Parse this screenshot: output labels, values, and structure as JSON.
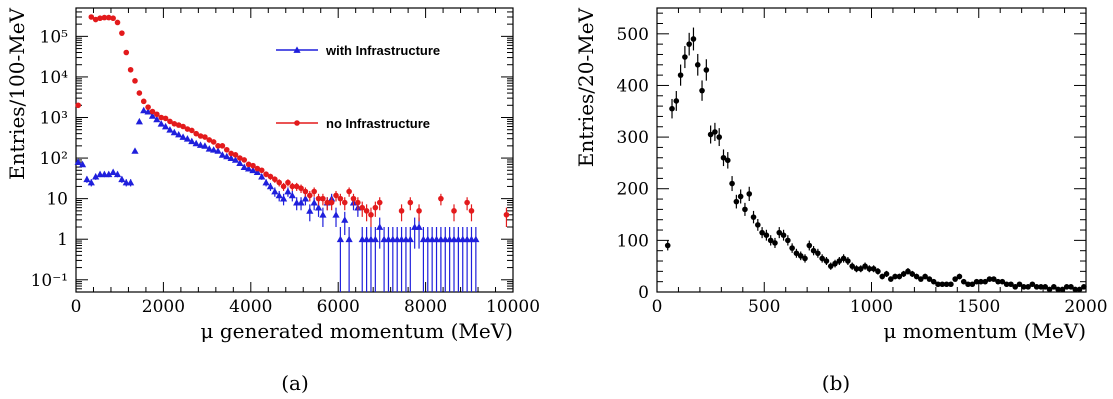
{
  "chart_data": [
    {
      "type": "scatter",
      "caption": "(a)",
      "xlabel": "μ generated momentum (MeV)",
      "ylabel": "Entries/100-MeV",
      "xlim": [
        0,
        10000
      ],
      "ylim": [
        0.05,
        500000
      ],
      "yscale": "log",
      "x_ticks": [
        "0",
        "2000",
        "4000",
        "6000",
        "8000",
        "10000"
      ],
      "y_ticks": [
        "10⁻¹",
        "1",
        "10",
        "10²",
        "10³",
        "10⁴",
        "10⁵"
      ],
      "legend_position": "right",
      "series": [
        {
          "name": "with Infrastructure",
          "color": "#1f1fdc",
          "marker": "triangle",
          "x": [
            50,
            150,
            250,
            350,
            450,
            550,
            650,
            750,
            850,
            950,
            1050,
            1150,
            1250,
            1350,
            1450,
            1550,
            1650,
            1750,
            1850,
            1950,
            2050,
            2150,
            2250,
            2350,
            2450,
            2550,
            2650,
            2750,
            2850,
            2950,
            3050,
            3150,
            3250,
            3350,
            3450,
            3550,
            3650,
            3750,
            3850,
            3950,
            4050,
            4150,
            4250,
            4350,
            4450,
            4550,
            4650,
            4750,
            4850,
            4950,
            5050,
            5150,
            5250,
            5350,
            5450,
            5550,
            5650,
            5750,
            5850,
            5950,
            6050,
            6150,
            6250,
            6350,
            6450,
            6550,
            6650,
            6750,
            6850,
            6950,
            7050,
            7150,
            7250,
            7350,
            7450,
            7550,
            7650,
            7750,
            7850,
            7950,
            8050,
            8150,
            8250,
            8350,
            8450,
            8550,
            8650,
            8750,
            8850,
            8950,
            9050,
            9150
          ],
          "y": [
            80,
            70,
            30,
            25,
            35,
            40,
            40,
            40,
            45,
            40,
            30,
            25,
            25,
            150,
            800,
            1500,
            1400,
            1100,
            900,
            700,
            600,
            500,
            430,
            380,
            330,
            300,
            260,
            230,
            210,
            200,
            170,
            160,
            150,
            120,
            110,
            100,
            90,
            75,
            60,
            55,
            50,
            45,
            35,
            25,
            20,
            15,
            12,
            10,
            15,
            12,
            8,
            8,
            10,
            5,
            8,
            6,
            4,
            8,
            10,
            4,
            1,
            3,
            1,
            8,
            6,
            1,
            1,
            1,
            1,
            2,
            1,
            1,
            1,
            1,
            1,
            1,
            1,
            2,
            2,
            1,
            1,
            1,
            1,
            1,
            1,
            1,
            1,
            1,
            1,
            1,
            1,
            1
          ]
        },
        {
          "name": "no Infrastructure",
          "color": "#e31a1c",
          "marker": "circle",
          "x": [
            50,
            350,
            450,
            550,
            650,
            750,
            850,
            950,
            1050,
            1150,
            1250,
            1350,
            1450,
            1550,
            1650,
            1750,
            1850,
            1950,
            2050,
            2150,
            2250,
            2350,
            2450,
            2550,
            2650,
            2750,
            2850,
            2950,
            3050,
            3150,
            3250,
            3350,
            3450,
            3550,
            3650,
            3750,
            3850,
            3950,
            4050,
            4150,
            4250,
            4350,
            4450,
            4550,
            4650,
            4750,
            4850,
            4950,
            5050,
            5150,
            5250,
            5350,
            5450,
            5550,
            5650,
            5750,
            5850,
            5950,
            6050,
            6150,
            6250,
            6350,
            6450,
            6550,
            6650,
            6750,
            6850,
            6950,
            7450,
            7650,
            7850,
            8350,
            8650,
            8950,
            9050,
            9850
          ],
          "y": [
            2000,
            300000,
            260000,
            280000,
            290000,
            290000,
            280000,
            220000,
            120000,
            40000,
            15000,
            8000,
            4000,
            2500,
            1800,
            1400,
            1200,
            1000,
            950,
            800,
            700,
            650,
            600,
            520,
            480,
            400,
            350,
            330,
            280,
            250,
            200,
            200,
            160,
            130,
            120,
            100,
            90,
            70,
            65,
            55,
            50,
            40,
            35,
            30,
            25,
            20,
            25,
            20,
            20,
            18,
            15,
            12,
            15,
            10,
            10,
            8,
            8,
            12,
            10,
            8,
            15,
            10,
            8,
            6,
            5,
            4,
            6,
            8,
            5,
            8,
            5,
            10,
            5,
            8,
            5,
            4
          ]
        }
      ]
    },
    {
      "type": "scatter",
      "caption": "(b)",
      "xlabel": "μ momentum (MeV)",
      "ylabel": "Entries/20-MeV",
      "xlim": [
        0,
        2000
      ],
      "ylim": [
        0,
        550
      ],
      "x_ticks": [
        "0",
        "500",
        "1000",
        "1500",
        "2000"
      ],
      "y_ticks": [
        "0",
        "100",
        "200",
        "300",
        "400",
        "500"
      ],
      "series": [
        {
          "color": "#000000",
          "marker": "circle",
          "x": [
            50,
            70,
            90,
            110,
            130,
            150,
            170,
            190,
            210,
            230,
            250,
            270,
            290,
            310,
            330,
            350,
            370,
            390,
            410,
            430,
            450,
            470,
            490,
            510,
            530,
            550,
            570,
            590,
            610,
            630,
            650,
            670,
            690,
            710,
            730,
            750,
            770,
            790,
            810,
            830,
            850,
            870,
            890,
            910,
            930,
            950,
            970,
            990,
            1010,
            1030,
            1050,
            1070,
            1090,
            1110,
            1130,
            1150,
            1170,
            1190,
            1210,
            1230,
            1250,
            1270,
            1290,
            1310,
            1330,
            1350,
            1370,
            1390,
            1410,
            1430,
            1450,
            1470,
            1490,
            1510,
            1530,
            1550,
            1570,
            1590,
            1610,
            1630,
            1650,
            1670,
            1690,
            1710,
            1730,
            1750,
            1770,
            1790,
            1810,
            1830,
            1850,
            1870,
            1890,
            1910,
            1930,
            1950,
            1970,
            1990
          ],
          "y": [
            90,
            355,
            370,
            420,
            455,
            480,
            490,
            440,
            390,
            430,
            305,
            310,
            300,
            260,
            255,
            210,
            175,
            185,
            160,
            190,
            145,
            130,
            115,
            110,
            100,
            95,
            115,
            110,
            100,
            85,
            75,
            70,
            65,
            90,
            80,
            75,
            65,
            60,
            50,
            55,
            60,
            65,
            60,
            50,
            45,
            45,
            50,
            45,
            45,
            40,
            30,
            35,
            25,
            30,
            30,
            35,
            40,
            35,
            30,
            25,
            30,
            25,
            20,
            15,
            15,
            15,
            15,
            25,
            30,
            20,
            15,
            15,
            20,
            20,
            20,
            25,
            25,
            20,
            20,
            15,
            15,
            10,
            15,
            10,
            10,
            15,
            10,
            10,
            10,
            5,
            10,
            5,
            5,
            10,
            10,
            5,
            5,
            10
          ]
        }
      ]
    }
  ]
}
